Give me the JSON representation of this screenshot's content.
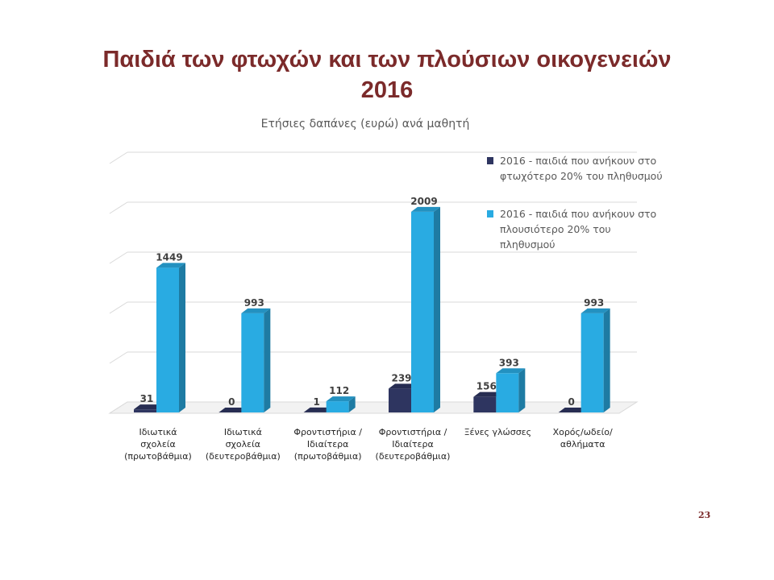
{
  "slide": {
    "title_line1": "Παιδιά των φτωχών και των πλούσιων οικογενειών",
    "title_line2": "2016",
    "page_number": "23"
  },
  "chart_data": {
    "type": "bar",
    "title": "Ετήσιες δαπάνες (ευρώ) ανά μαθητή",
    "categories": [
      "Ιδιωτικά\nσχολεία\n(πρωτοβάθμια)",
      "Ιδιωτικά\nσχολεία\n(δευτεροβάθμια)",
      "Φροντιστήρια /\nΙδιαίτερα\n(πρωτοβάθμια)",
      "Φροντιστήρια /\nΙδιαίτερα\n(δευτεροβάθμια)",
      "Ξένες γλώσσες",
      "Χορός/ωδείο/\nαθλήματα"
    ],
    "series": [
      {
        "name": "2016 - παιδιά που ανήκουν στο\nφτωχότερο 20% του πληθυσμού",
        "values": [
          31,
          0,
          1,
          239,
          156,
          0
        ],
        "color": "#2e3560"
      },
      {
        "name": "2016 - παιδιά  που ανήκουν στο\nπλουσιότερο 20% του\nπληθυσμού",
        "values": [
          1449,
          993,
          112,
          2009,
          393,
          993
        ],
        "color": "#29abe2"
      }
    ],
    "ylim": [
      0,
      2500
    ],
    "grid": true,
    "legend": "top-right",
    "style": "3d-column"
  }
}
